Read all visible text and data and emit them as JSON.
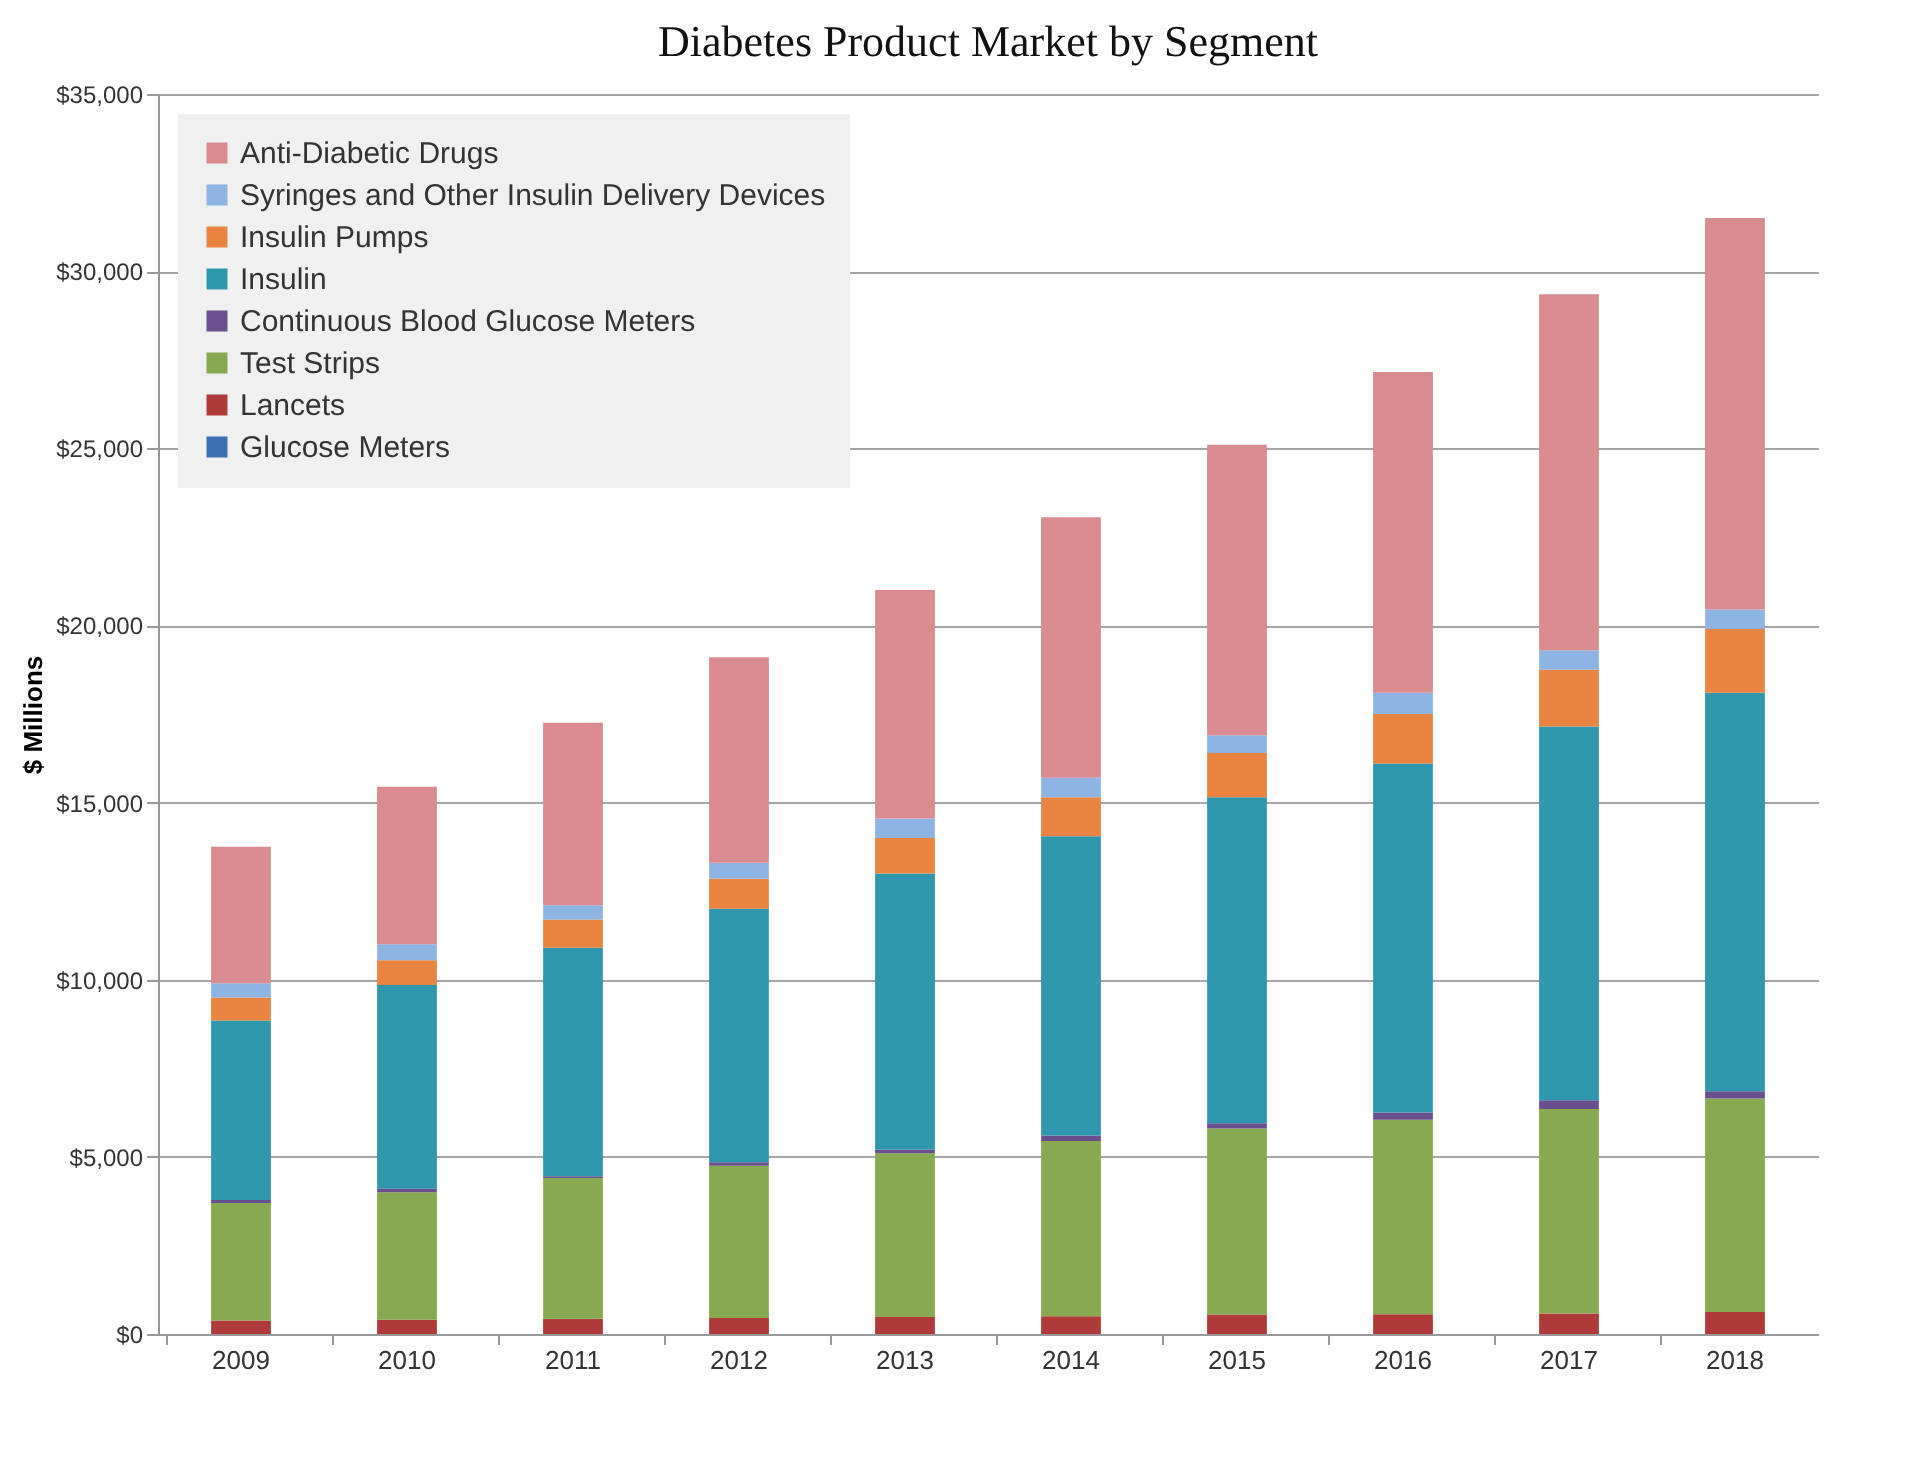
{
  "chart_data": {
    "type": "bar",
    "title": "Diabetes Product Market by Segment",
    "ylabel": "$ Millions",
    "stacked": true,
    "grid": "y",
    "legend": "top left",
    "categories": [
      "2009",
      "2010",
      "2011",
      "2012",
      "2013",
      "2014",
      "2015",
      "2016",
      "2017",
      "2018"
    ],
    "ylim": [
      0,
      35000
    ],
    "yticks": [
      {
        "value": 0,
        "label": "$0"
      },
      {
        "value": 5000,
        "label": "$5,000"
      },
      {
        "value": 10000,
        "label": "$10,000"
      },
      {
        "value": 15000,
        "label": "$15,000"
      },
      {
        "value": 20000,
        "label": "$20,000"
      },
      {
        "value": 25000,
        "label": "$25,000"
      },
      {
        "value": 30000,
        "label": "$30,000"
      },
      {
        "value": 35000,
        "label": "$35,000"
      }
    ],
    "series": [
      {
        "name": "Glucose Meters",
        "color": "#3c6eb4",
        "values": [
          0,
          0,
          0,
          0,
          0,
          0,
          0,
          0,
          0,
          0
        ]
      },
      {
        "name": "Lancets",
        "color": "#b03a3a",
        "values": [
          380,
          400,
          430,
          450,
          480,
          500,
          550,
          560,
          580,
          620
        ]
      },
      {
        "name": "Test Strips",
        "color": "#87a94f",
        "values": [
          3320,
          3600,
          3970,
          4300,
          4620,
          4950,
          5250,
          5490,
          5770,
          6030
        ]
      },
      {
        "name": "Continuous Blood Glucose Meters",
        "color": "#6a4f8f",
        "values": [
          80,
          100,
          50,
          100,
          100,
          150,
          150,
          200,
          250,
          200
        ]
      },
      {
        "name": "Insulin",
        "color": "#2e96ad",
        "values": [
          5070,
          5750,
          6450,
          7150,
          7800,
          8450,
          9200,
          9850,
          10550,
          11250
        ]
      },
      {
        "name": "Insulin Pumps",
        "color": "#e8843f",
        "values": [
          650,
          700,
          800,
          850,
          1000,
          1100,
          1250,
          1400,
          1600,
          1800
        ]
      },
      {
        "name": "Syringes and Other Insulin Delivery Devices",
        "color": "#8eb4e3",
        "values": [
          400,
          450,
          400,
          450,
          550,
          550,
          500,
          600,
          550,
          550
        ]
      },
      {
        "name": "Anti-Diabetic Drugs",
        "color": "#d98b8f",
        "values": [
          3850,
          4450,
          5150,
          5800,
          6450,
          7350,
          8200,
          9050,
          10050,
          11050
        ]
      }
    ]
  }
}
